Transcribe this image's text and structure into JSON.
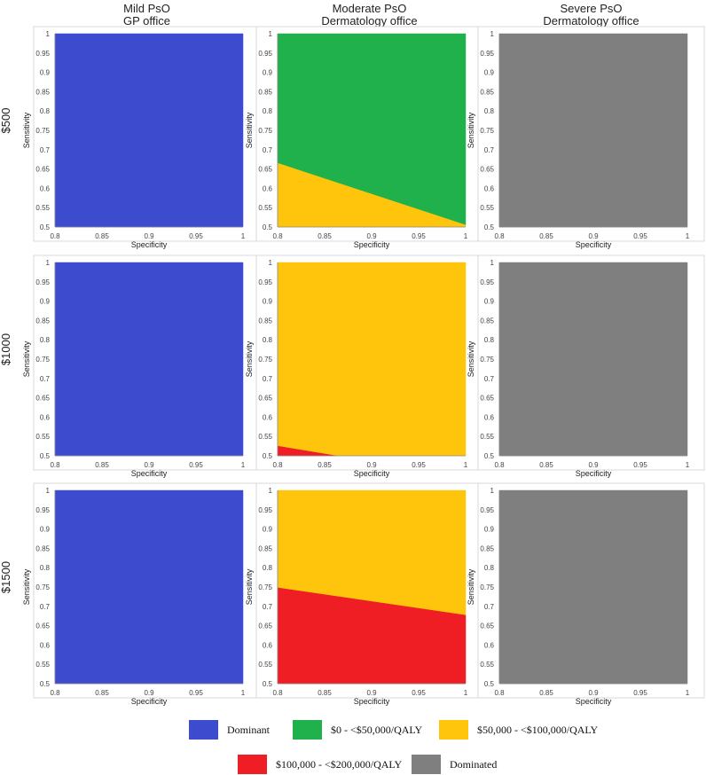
{
  "colors": {
    "dominant": "#3d4bcf",
    "zero_to_50k": "#21b14c",
    "50k_to_100k": "#fec50c",
    "100k_to_200k": "#ee1e24",
    "dominated": "#7f7f7f"
  },
  "columns": [
    {
      "line1": "Mild PsO",
      "line2": "GP office"
    },
    {
      "line1": "Moderate PsO",
      "line2": "Dermatology office"
    },
    {
      "line1": "Severe PsO",
      "line2": "Dermatology office"
    }
  ],
  "rows": [
    "$500",
    "$1000",
    "$1500"
  ],
  "legend": [
    {
      "key": "dominant",
      "label": "Dominant"
    },
    {
      "key": "zero_to_50k",
      "label": "$0 - <$50,000/QALY"
    },
    {
      "key": "50k_to_100k",
      "label": "$50,000 - <$100,000/QALY"
    },
    {
      "key": "100k_to_200k",
      "label": "$100,000 - <$200,000/QALY"
    },
    {
      "key": "dominated",
      "label": "Dominated"
    }
  ],
  "chart_data": [
    {
      "type": "area",
      "row": "$500",
      "column": "Mild PsO GP office",
      "xlabel": "Specificity",
      "ylabel": "Sensitivity",
      "xlim": [
        0.8,
        1
      ],
      "ylim": [
        0.5,
        1
      ],
      "xticks": [
        "0.8",
        "0.85",
        "0.9",
        "0.95",
        "1"
      ],
      "yticks": [
        "0.5",
        "0.55",
        "0.6",
        "0.65",
        "0.7",
        "0.75",
        "0.8",
        "0.85",
        "0.9",
        "0.95",
        "1"
      ],
      "regions": [
        {
          "category": "dominant",
          "points": [
            [
              0.8,
              0.5
            ],
            [
              1,
              0.5
            ],
            [
              1,
              1
            ],
            [
              0.8,
              1
            ]
          ]
        }
      ]
    },
    {
      "type": "area",
      "row": "$500",
      "column": "Moderate PsO Dermatology office",
      "xlabel": "Specificity",
      "ylabel": "Sensitivity",
      "xlim": [
        0.8,
        1
      ],
      "ylim": [
        0.5,
        1
      ],
      "xticks": [
        "0.8",
        "0.85",
        "0.9",
        "0.95",
        "1"
      ],
      "yticks": [
        "0.5",
        "0.55",
        "0.6",
        "0.65",
        "0.7",
        "0.75",
        "0.8",
        "0.85",
        "0.9",
        "0.95",
        "1"
      ],
      "regions": [
        {
          "category": "zero_to_50k",
          "points": [
            [
              0.8,
              0.665
            ],
            [
              1,
              0.505
            ],
            [
              1,
              1
            ],
            [
              0.8,
              1
            ]
          ]
        },
        {
          "category": "50k_to_100k",
          "points": [
            [
              0.8,
              0.5
            ],
            [
              1,
              0.5
            ],
            [
              1,
              0.505
            ],
            [
              0.8,
              0.665
            ]
          ]
        }
      ]
    },
    {
      "type": "area",
      "row": "$500",
      "column": "Severe PsO Dermatology office",
      "xlabel": "Specificity",
      "ylabel": "Sensitivity",
      "xlim": [
        0.8,
        1
      ],
      "ylim": [
        0.5,
        1
      ],
      "xticks": [
        "0.8",
        "0.85",
        "0.9",
        "0.95",
        "1"
      ],
      "yticks": [
        "0.5",
        "0.55",
        "0.6",
        "0.65",
        "0.7",
        "0.75",
        "0.8",
        "0.85",
        "0.9",
        "0.95",
        "1"
      ],
      "regions": [
        {
          "category": "dominated",
          "points": [
            [
              0.8,
              0.5
            ],
            [
              1,
              0.5
            ],
            [
              1,
              1
            ],
            [
              0.8,
              1
            ]
          ]
        }
      ]
    },
    {
      "type": "area",
      "row": "$1000",
      "column": "Mild PsO GP office",
      "xlabel": "Specificity",
      "ylabel": "Sensitivity",
      "xlim": [
        0.8,
        1
      ],
      "ylim": [
        0.5,
        1
      ],
      "xticks": [
        "0.8",
        "0.85",
        "0.9",
        "0.95",
        "1"
      ],
      "yticks": [
        "0.5",
        "0.55",
        "0.6",
        "0.65",
        "0.7",
        "0.75",
        "0.8",
        "0.85",
        "0.9",
        "0.95",
        "1"
      ],
      "regions": [
        {
          "category": "dominant",
          "points": [
            [
              0.8,
              0.5
            ],
            [
              1,
              0.5
            ],
            [
              1,
              1
            ],
            [
              0.8,
              1
            ]
          ]
        }
      ]
    },
    {
      "type": "area",
      "row": "$1000",
      "column": "Moderate PsO Dermatology office",
      "xlabel": "Specificity",
      "ylabel": "Sensitivity",
      "xlim": [
        0.8,
        1
      ],
      "ylim": [
        0.5,
        1
      ],
      "xticks": [
        "0.8",
        "0.85",
        "0.9",
        "0.95",
        "1"
      ],
      "yticks": [
        "0.5",
        "0.55",
        "0.6",
        "0.65",
        "0.7",
        "0.75",
        "0.8",
        "0.85",
        "0.9",
        "0.95",
        "1"
      ],
      "regions": [
        {
          "category": "50k_to_100k",
          "points": [
            [
              0.8,
              0.525
            ],
            [
              0.862,
              0.5
            ],
            [
              1,
              0.5
            ],
            [
              1,
              1
            ],
            [
              0.8,
              1
            ]
          ]
        },
        {
          "category": "100k_to_200k",
          "points": [
            [
              0.8,
              0.5
            ],
            [
              0.862,
              0.5
            ],
            [
              0.8,
              0.525
            ]
          ]
        }
      ]
    },
    {
      "type": "area",
      "row": "$1000",
      "column": "Severe PsO Dermatology office",
      "xlabel": "Specificity",
      "ylabel": "Sensitivity",
      "xlim": [
        0.8,
        1
      ],
      "ylim": [
        0.5,
        1
      ],
      "xticks": [
        "0.8",
        "0.85",
        "0.9",
        "0.95",
        "1"
      ],
      "yticks": [
        "0.5",
        "0.55",
        "0.6",
        "0.65",
        "0.7",
        "0.75",
        "0.8",
        "0.85",
        "0.9",
        "0.95",
        "1"
      ],
      "regions": [
        {
          "category": "dominated",
          "points": [
            [
              0.8,
              0.5
            ],
            [
              1,
              0.5
            ],
            [
              1,
              1
            ],
            [
              0.8,
              1
            ]
          ]
        }
      ]
    },
    {
      "type": "area",
      "row": "$1500",
      "column": "Mild PsO GP office",
      "xlabel": "Specificity",
      "ylabel": "Sensitivity",
      "xlim": [
        0.8,
        1
      ],
      "ylim": [
        0.5,
        1
      ],
      "xticks": [
        "0.8",
        "0.85",
        "0.9",
        "0.95",
        "1"
      ],
      "yticks": [
        "0.5",
        "0.55",
        "0.6",
        "0.65",
        "0.7",
        "0.75",
        "0.8",
        "0.85",
        "0.9",
        "0.95",
        "1"
      ],
      "regions": [
        {
          "category": "dominant",
          "points": [
            [
              0.8,
              0.5
            ],
            [
              1,
              0.5
            ],
            [
              1,
              1
            ],
            [
              0.8,
              1
            ]
          ]
        }
      ]
    },
    {
      "type": "area",
      "row": "$1500",
      "column": "Moderate PsO Dermatology office",
      "xlabel": "Specificity",
      "ylabel": "Sensitivity",
      "xlim": [
        0.8,
        1
      ],
      "ylim": [
        0.5,
        1
      ],
      "xticks": [
        "0.8",
        "0.85",
        "0.9",
        "0.95",
        "1"
      ],
      "yticks": [
        "0.5",
        "0.55",
        "0.6",
        "0.65",
        "0.7",
        "0.75",
        "0.8",
        "0.85",
        "0.9",
        "0.95",
        "1"
      ],
      "regions": [
        {
          "category": "50k_to_100k",
          "points": [
            [
              0.8,
              0.748
            ],
            [
              1,
              0.677
            ],
            [
              1,
              1
            ],
            [
              0.8,
              1
            ]
          ]
        },
        {
          "category": "100k_to_200k",
          "points": [
            [
              0.8,
              0.5
            ],
            [
              1,
              0.5
            ],
            [
              1,
              0.677
            ],
            [
              0.8,
              0.748
            ]
          ]
        }
      ]
    },
    {
      "type": "area",
      "row": "$1500",
      "column": "Severe PsO Dermatology office",
      "xlabel": "Specificity",
      "ylabel": "Sensitivity",
      "xlim": [
        0.8,
        1
      ],
      "ylim": [
        0.5,
        1
      ],
      "xticks": [
        "0.8",
        "0.85",
        "0.9",
        "0.95",
        "1"
      ],
      "yticks": [
        "0.5",
        "0.55",
        "0.6",
        "0.65",
        "0.7",
        "0.75",
        "0.8",
        "0.85",
        "0.9",
        "0.95",
        "1"
      ],
      "regions": [
        {
          "category": "dominated",
          "points": [
            [
              0.8,
              0.5
            ],
            [
              1,
              0.5
            ],
            [
              1,
              1
            ],
            [
              0.8,
              1
            ]
          ]
        }
      ]
    }
  ]
}
